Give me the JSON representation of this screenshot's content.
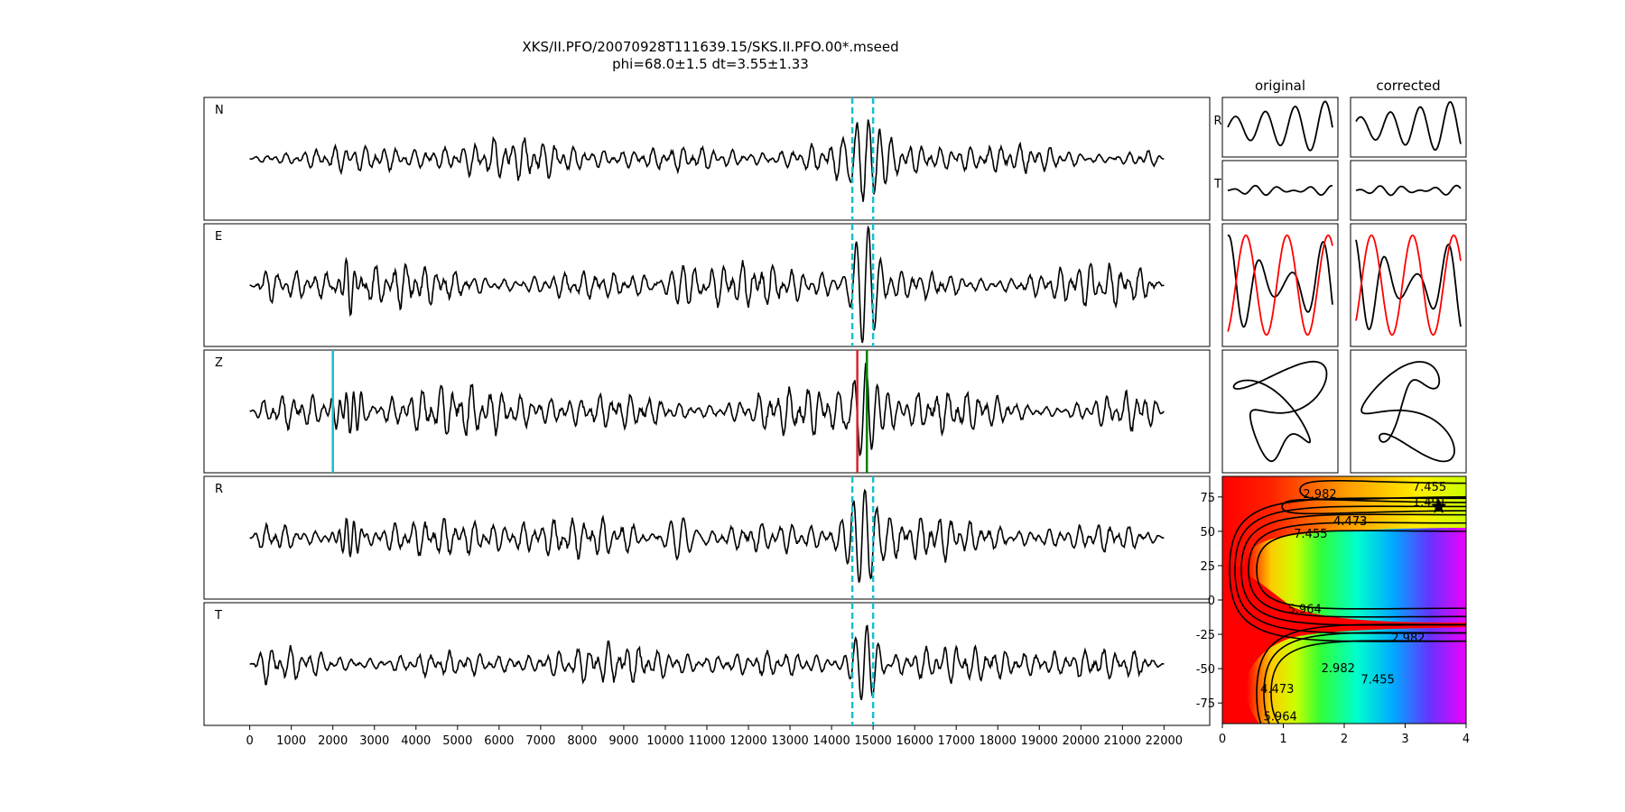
{
  "title": {
    "line1": "XKS/II.PFO/20070928T111639.15/SKS.II.PFO.00*.mseed",
    "line2": "phi=68.0±1.5 dt=3.55±1.33"
  },
  "chart_data": [
    {
      "type": "line",
      "panel": "seismograms",
      "traces": [
        {
          "label": "N",
          "amplitude": 0.3,
          "packet_amplitude": 0.9
        },
        {
          "label": "E",
          "amplitude": 0.32,
          "packet_amplitude": 1.0
        },
        {
          "label": "Z",
          "amplitude": 0.38,
          "packet_amplitude": 0.8
        },
        {
          "label": "R",
          "amplitude": 0.32,
          "packet_amplitude": 1.0
        },
        {
          "label": "T",
          "amplitude": 0.28,
          "packet_amplitude": 0.6
        }
      ],
      "x_ticks": [
        0,
        1000,
        2000,
        3000,
        4000,
        5000,
        6000,
        7000,
        8000,
        9000,
        10000,
        11000,
        12000,
        13000,
        14000,
        15000,
        16000,
        17000,
        18000,
        19000,
        20000,
        21000,
        22000
      ],
      "xlim": [
        -1100,
        23100
      ],
      "trace_extent": [
        0,
        22000
      ],
      "window_lines": {
        "x": [
          14500,
          15000
        ],
        "color": "#17becf",
        "style": "dashed",
        "traces": [
          "N",
          "E",
          "R",
          "T"
        ]
      },
      "picks": [
        {
          "x": 2000,
          "color": "#17becf",
          "trace": "Z"
        },
        {
          "x": 14620,
          "color": "#d62728",
          "trace": "Z"
        },
        {
          "x": 14850,
          "color": "#008000",
          "trace": "Z"
        }
      ]
    },
    {
      "type": "line",
      "panel": "particle-motion",
      "column_titles": [
        "original",
        "corrected"
      ],
      "row_labels": [
        "R",
        "T"
      ],
      "colors": {
        "primary": "#000000",
        "secondary": "#ff0000"
      }
    },
    {
      "type": "heatmap",
      "panel": "error-surface",
      "xlim": [
        0,
        4
      ],
      "ylim": [
        -90,
        90
      ],
      "x_ticks": [
        0,
        1,
        2,
        3,
        4
      ],
      "y_ticks": [
        75,
        50,
        25,
        0,
        -25,
        -50,
        -75
      ],
      "colormap": "gist_rainbow",
      "contour_labels": [
        "7.455",
        "4.473",
        "1.491",
        "2.982",
        "4.473",
        "7.455",
        "5.964",
        "2.982",
        "2.982",
        "7.455",
        "4.473",
        "5.964"
      ],
      "best_fit": {
        "dt": 3.55,
        "phi": 68.0,
        "marker": "star"
      }
    }
  ]
}
